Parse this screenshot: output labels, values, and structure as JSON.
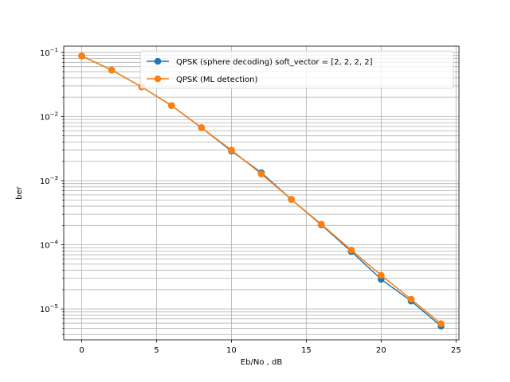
{
  "chart_data": {
    "type": "line",
    "xlabel": "Eb/No , dB",
    "ylabel": "ber",
    "yscale": "log",
    "xlim": [
      -1.2,
      25.2
    ],
    "ylim": [
      3.3e-06,
      0.125
    ],
    "xticks": [
      0,
      5,
      10,
      15,
      20,
      25
    ],
    "xtick_labels": [
      "0",
      "5",
      "10",
      "15",
      "20",
      "25"
    ],
    "yticks": [
      1e-05,
      0.0001,
      0.001,
      0.01,
      0.1
    ],
    "ytick_labels": [
      {
        "base": "10",
        "exp": "−5"
      },
      {
        "base": "10",
        "exp": "−4"
      },
      {
        "base": "10",
        "exp": "−3"
      },
      {
        "base": "10",
        "exp": "−2"
      },
      {
        "base": "10",
        "exp": "−1"
      }
    ],
    "grid": true,
    "legend_position": "top-right",
    "x": [
      0,
      2,
      4,
      6,
      8,
      10,
      12,
      14,
      16,
      18,
      20,
      22,
      24
    ],
    "series": [
      {
        "name": "QPSK (sphere decoding) soft_vector = [2, 2, 2, 2]",
        "color": "#1f77b4",
        "values": [
          0.088,
          0.053,
          0.029,
          0.0148,
          0.0067,
          0.0029,
          0.00133,
          0.00051,
          0.000205,
          7.9e-05,
          2.9e-05,
          1.33e-05,
          5.4e-06
        ]
      },
      {
        "name": "QPSK (ML detection)",
        "color": "#ff7f0e",
        "values": [
          0.088,
          0.053,
          0.029,
          0.0148,
          0.0067,
          0.003,
          0.00127,
          0.00051,
          0.00021,
          8.3e-05,
          3.35e-05,
          1.42e-05,
          5.9e-06
        ]
      }
    ]
  }
}
